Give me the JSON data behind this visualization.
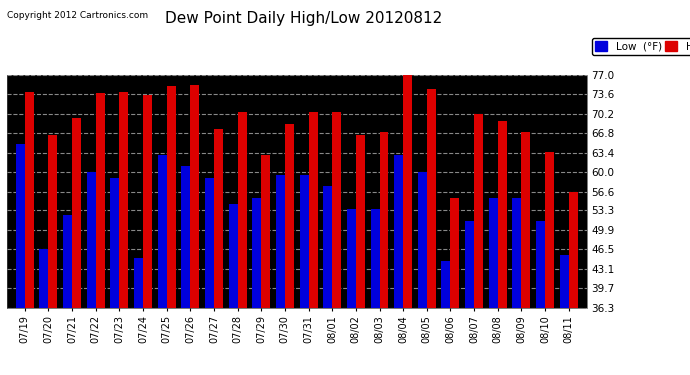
{
  "title": "Dew Point Daily High/Low 20120812",
  "copyright": "Copyright 2012 Cartronics.com",
  "dates": [
    "07/19",
    "07/20",
    "07/21",
    "07/22",
    "07/23",
    "07/24",
    "07/25",
    "07/26",
    "07/27",
    "07/28",
    "07/29",
    "07/30",
    "07/31",
    "08/01",
    "08/02",
    "08/03",
    "08/04",
    "08/05",
    "08/06",
    "08/07",
    "08/08",
    "08/09",
    "08/10",
    "08/11"
  ],
  "low_values": [
    65.0,
    46.5,
    52.5,
    60.0,
    59.0,
    45.0,
    63.0,
    61.0,
    59.0,
    54.5,
    55.5,
    59.5,
    59.5,
    57.5,
    53.5,
    53.5,
    63.0,
    60.0,
    44.5,
    51.5,
    55.5,
    55.5,
    51.5,
    45.5
  ],
  "high_values": [
    74.0,
    66.5,
    69.5,
    73.8,
    74.0,
    73.5,
    75.0,
    75.2,
    67.5,
    70.5,
    63.0,
    68.5,
    70.5,
    70.5,
    66.5,
    67.0,
    77.5,
    74.5,
    55.5,
    70.2,
    69.0,
    67.0,
    63.5,
    56.5
  ],
  "low_color": "#0000dd",
  "high_color": "#dd0000",
  "bg_color": "#000000",
  "plot_bg_color": "#000000",
  "outer_bg_color": "#ffffff",
  "grid_color": "#888888",
  "ylim_min": 36.3,
  "ylim_max": 77.0,
  "yticks": [
    36.3,
    39.7,
    43.1,
    46.5,
    49.9,
    53.3,
    56.6,
    60.0,
    63.4,
    66.8,
    70.2,
    73.6,
    77.0
  ],
  "bar_width": 0.38,
  "legend_low": "Low  (°F)",
  "legend_high": "High  (°F)",
  "title_color": "#000000",
  "tick_color": "#000000",
  "copyright_color": "#000000"
}
